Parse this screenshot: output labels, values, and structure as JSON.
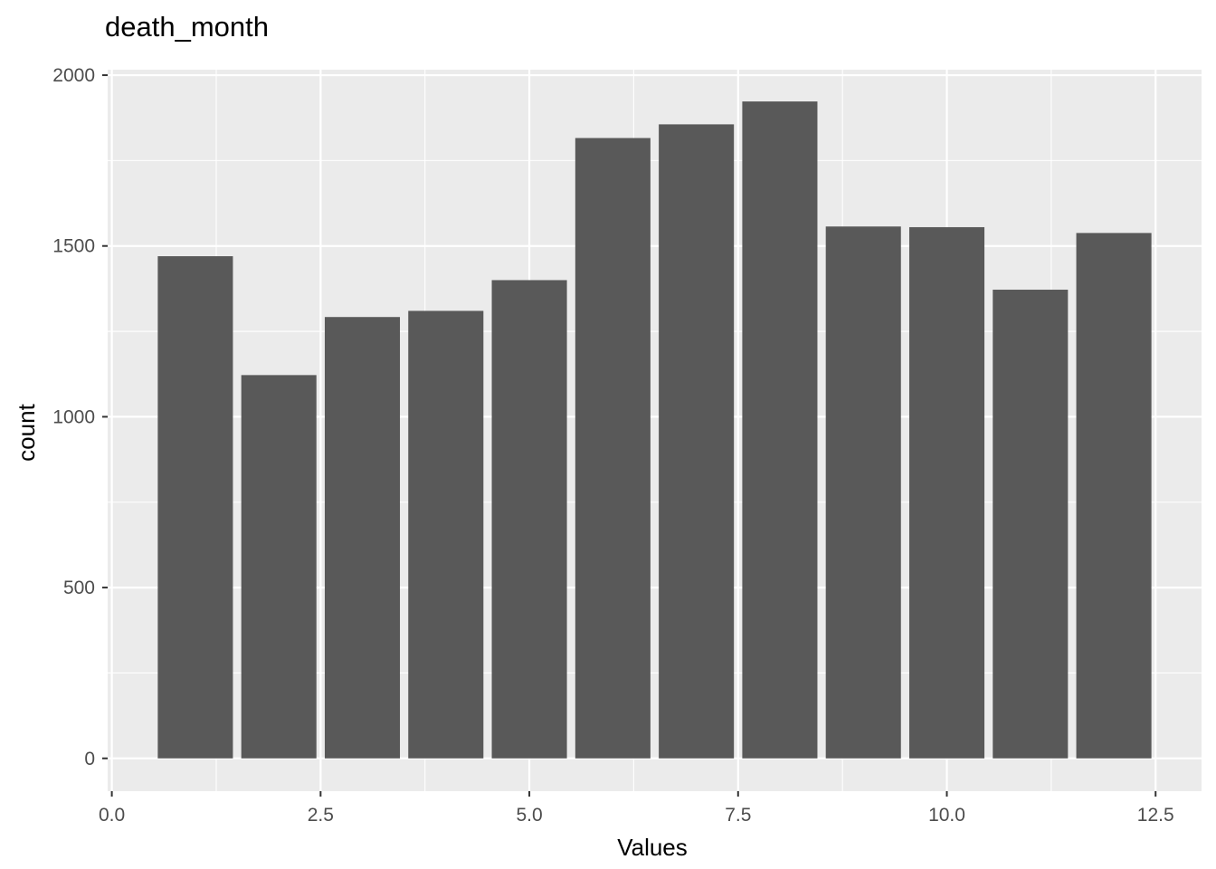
{
  "chart_data": {
    "type": "bar",
    "title": "death_month",
    "xlabel": "Values",
    "ylabel": "count",
    "x": [
      1,
      2,
      3,
      4,
      5,
      6,
      7,
      8,
      9,
      10,
      11,
      12
    ],
    "values": [
      1470,
      1122,
      1292,
      1310,
      1400,
      1816,
      1856,
      1923,
      1557,
      1555,
      1372,
      1538
    ],
    "xlim": [
      -0.05,
      13.05
    ],
    "ylim": [
      -96,
      2016
    ],
    "xticks": [
      0.0,
      2.5,
      5.0,
      7.5,
      10.0,
      12.5
    ],
    "xtick_labels": [
      "0.0",
      "2.5",
      "5.0",
      "7.5",
      "10.0",
      "12.5"
    ],
    "yticks": [
      0,
      500,
      1000,
      1500,
      2000
    ],
    "ytick_labels": [
      "0",
      "500",
      "1000",
      "1500",
      "2000"
    ],
    "bar_width": 0.9,
    "grid": true,
    "colors": {
      "panel": "#ebebeb",
      "grid": "#ffffff",
      "bar": "#595959",
      "tick": "#333333"
    }
  }
}
